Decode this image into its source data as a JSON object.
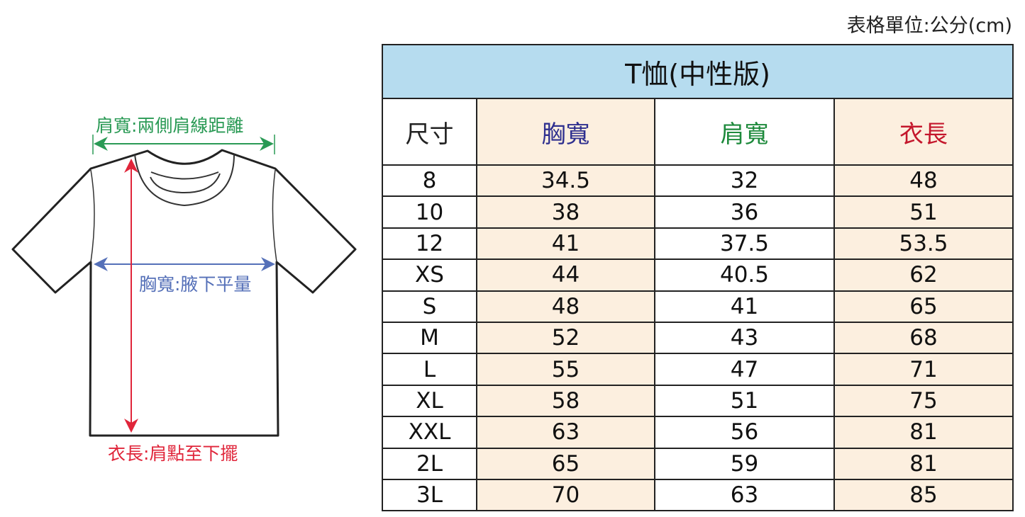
{
  "unit_note": "表格單位:公分(cm)",
  "diagram": {
    "shoulder_label": "肩寬:兩側肩線距離",
    "chest_label": "胸寬:腋下平量",
    "length_label": "衣長:肩點至下擺",
    "colors": {
      "shoulder": "#2a9a55",
      "chest": "#5570b8",
      "length": "#e0253a"
    }
  },
  "table": {
    "title": "T恤(中性版)",
    "headers": [
      "尺寸",
      "胸寬",
      "肩寬",
      "衣長"
    ],
    "header_colors": [
      "#222222",
      "#2e2f8f",
      "#1e8a3c",
      "#c4172c"
    ],
    "rows": [
      [
        "8",
        "34.5",
        "32",
        "48"
      ],
      [
        "10",
        "38",
        "36",
        "51"
      ],
      [
        "12",
        "41",
        "37.5",
        "53.5"
      ],
      [
        "XS",
        "44",
        "40.5",
        "62"
      ],
      [
        "S",
        "48",
        "41",
        "65"
      ],
      [
        "M",
        "52",
        "43",
        "68"
      ],
      [
        "L",
        "55",
        "47",
        "71"
      ],
      [
        "XL",
        "58",
        "51",
        "75"
      ],
      [
        "XXL",
        "63",
        "56",
        "81"
      ],
      [
        "2L",
        "65",
        "59",
        "81"
      ],
      [
        "3L",
        "70",
        "63",
        "85"
      ]
    ]
  }
}
